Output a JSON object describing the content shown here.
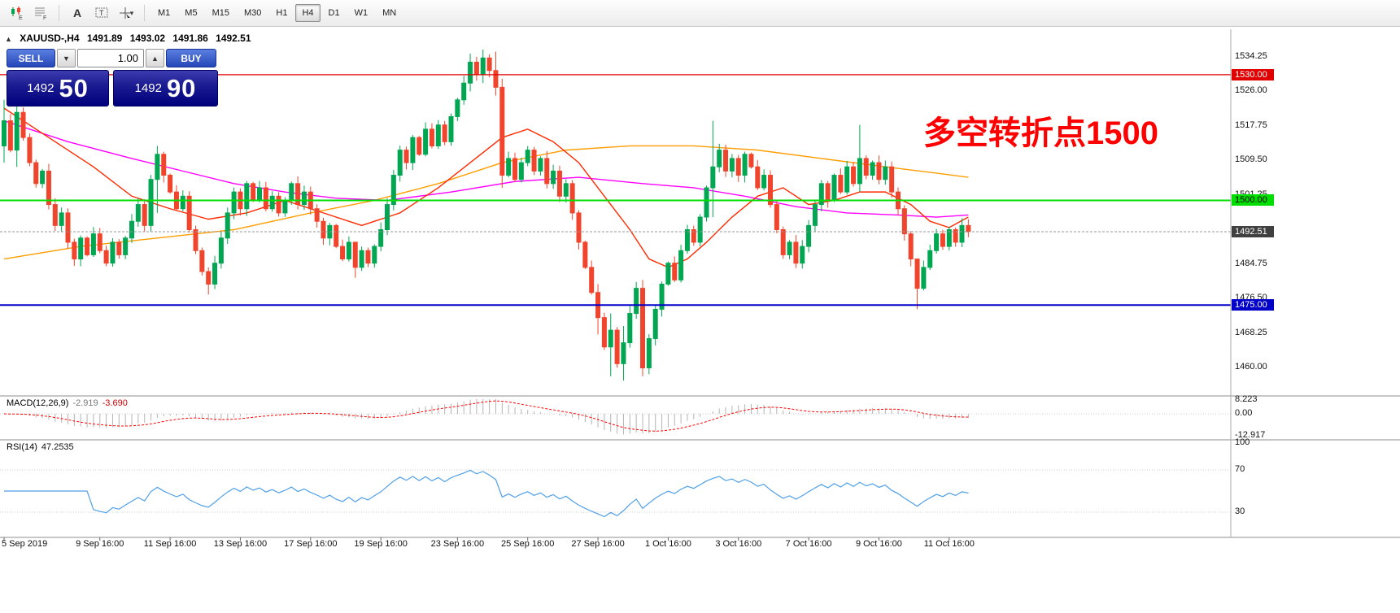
{
  "toolbar": {
    "timeframes": [
      "M1",
      "M5",
      "M15",
      "M30",
      "H1",
      "H4",
      "D1",
      "W1",
      "MN"
    ],
    "active_timeframe": "H4",
    "letter_a": "A",
    "label_t": "T",
    "sub_e": "E",
    "sub_f": "F",
    "cursor_caret": "▾"
  },
  "chart_header": {
    "collapse": "▲",
    "symbol": "XAUUSD-,H4",
    "open": "1491.89",
    "high": "1493.02",
    "low": "1491.86",
    "close": "1492.51"
  },
  "trade_panel": {
    "sell_label": "SELL",
    "buy_label": "BUY",
    "volume": "1.00",
    "dropdown_glyph": "▼",
    "spin_glyph": "▲",
    "sell_small": "1492",
    "sell_big": "50",
    "buy_small": "1492",
    "buy_big": "90"
  },
  "annotation": {
    "text": "多空转折点1500",
    "color": "#ff0000"
  },
  "indicators": {
    "macd": {
      "name": "MACD(12,26,9)",
      "main": "-2.919",
      "signal": "-3.690",
      "scale_values": [
        8.223,
        0,
        -12.917
      ],
      "scale_labels": [
        "8.223",
        "0.00",
        "-12.917"
      ]
    },
    "rsi": {
      "name": "RSI(14)",
      "value": "47.2535",
      "scale_values": [
        100,
        70,
        30
      ],
      "scale_labels": [
        "100",
        "70",
        "30"
      ]
    }
  },
  "colors": {
    "up": "#00a651",
    "down": "#f0442c",
    "ma_fast": "#ff2a00",
    "ma_mid": "#ff00ff",
    "ma_slow": "#ff9d00",
    "macd_hist": "#b4b4b4",
    "macd_signal": "#ff0000",
    "rsi_line": "#4f9fe8",
    "level_red": "#e00000",
    "level_green": "#00dd00",
    "level_blue": "#0000c8",
    "price_badge": "#404040",
    "current_line": "#999999"
  },
  "chart_data": {
    "type": "candlestick",
    "symbol": "XAUUSD",
    "timeframe": "H4",
    "y_ticks": [
      1534.25,
      1526.0,
      1517.75,
      1509.5,
      1501.25,
      1484.75,
      1476.5,
      1468.25,
      1460.0
    ],
    "levels": [
      {
        "price": 1530.0,
        "label": "1530.00",
        "color_key": "level_green_dummy",
        "color": "#e00000",
        "text_color": "#ffffff",
        "width": 1.3
      },
      {
        "price": 1500.0,
        "label": "1500.00",
        "color": "#00dd00",
        "text_color": "#000000",
        "width": 2
      },
      {
        "price": 1475.0,
        "label": "1475.00",
        "color": "#0000c8",
        "text_color": "#ffffff",
        "width": 2
      }
    ],
    "current_price": 1492.51,
    "current_price_label": "1492.51",
    "x_labels": [
      {
        "i": 0,
        "text": "5 Sep 2019"
      },
      {
        "i": 15,
        "text": "9 Sep 16:00"
      },
      {
        "i": 26,
        "text": "11 Sep 16:00"
      },
      {
        "i": 37,
        "text": "13 Sep 16:00"
      },
      {
        "i": 48,
        "text": "17 Sep 16:00"
      },
      {
        "i": 59,
        "text": "19 Sep 16:00"
      },
      {
        "i": 71,
        "text": "23 Sep 16:00"
      },
      {
        "i": 82,
        "text": "25 Sep 16:00"
      },
      {
        "i": 93,
        "text": "27 Sep 16:00"
      },
      {
        "i": 104,
        "text": "1 Oct 16:00"
      },
      {
        "i": 115,
        "text": "3 Oct 16:00"
      },
      {
        "i": 126,
        "text": "7 Oct 16:00"
      },
      {
        "i": 137,
        "text": "9 Oct 16:00"
      },
      {
        "i": 148,
        "text": "11 Oct 16:00"
      }
    ],
    "candles": {
      "open_first": 1513,
      "closes": [
        1519,
        1512,
        1521,
        1515,
        1509,
        1504,
        1507,
        1499,
        1494,
        1497,
        1490,
        1486,
        1491,
        1487,
        1492,
        1488,
        1485,
        1490,
        1487,
        1491,
        1495,
        1499,
        1494,
        1505,
        1511,
        1506,
        1502,
        1498,
        1501,
        1493,
        1488,
        1483,
        1480,
        1485,
        1491,
        1497,
        1502,
        1498,
        1504,
        1500,
        1503,
        1498,
        1501,
        1497,
        1500,
        1504,
        1499,
        1502,
        1498,
        1495,
        1491,
        1494,
        1489,
        1486,
        1490,
        1484,
        1488,
        1485,
        1489,
        1493,
        1499,
        1506,
        1512,
        1509,
        1515,
        1511,
        1517,
        1513,
        1518,
        1514,
        1520,
        1524,
        1528,
        1533,
        1530,
        1534,
        1531,
        1527,
        1506,
        1510,
        1505,
        1509,
        1512,
        1507,
        1510,
        1504,
        1507,
        1501,
        1504,
        1497,
        1490,
        1484,
        1478,
        1472,
        1465,
        1469,
        1461,
        1466,
        1473,
        1479,
        1460,
        1467,
        1474,
        1480,
        1485,
        1481,
        1488,
        1493,
        1490,
        1496,
        1503,
        1508,
        1512,
        1507,
        1510,
        1506,
        1511,
        1508,
        1503,
        1506,
        1499,
        1493,
        1487,
        1490,
        1485,
        1489,
        1494,
        1499,
        1504,
        1500,
        1506,
        1502,
        1508,
        1504,
        1510,
        1506,
        1509,
        1505,
        1508,
        1502,
        1498,
        1492,
        1486,
        1479,
        1484,
        1488,
        1492,
        1489,
        1493,
        1490,
        1494,
        1492.5
      ],
      "wick_overrides": {
        "0": [
          1524,
          1509
        ],
        "2": [
          1526,
          1508
        ],
        "24": [
          1513,
          1497
        ],
        "32": [
          1484,
          1477.5
        ],
        "55": [
          1490,
          1481.5
        ],
        "73": [
          1535,
          1526
        ],
        "75": [
          1536,
          1528
        ],
        "77": [
          1535.5,
          1525
        ],
        "78": [
          1529,
          1503
        ],
        "93": [
          1480,
          1468
        ],
        "95": [
          1473,
          1458
        ],
        "97": [
          1470,
          1457
        ],
        "100": [
          1481,
          1458
        ],
        "111": [
          1519,
          1496
        ],
        "134": [
          1518,
          1502
        ],
        "143": [
          1483,
          1474
        ]
      }
    },
    "overlays": [
      {
        "name": "ma-slow-orange",
        "color": "#ff9d00",
        "points": [
          [
            0,
            1486
          ],
          [
            12,
            1489
          ],
          [
            24,
            1491
          ],
          [
            36,
            1493
          ],
          [
            48,
            1497
          ],
          [
            58,
            1500
          ],
          [
            68,
            1504
          ],
          [
            78,
            1509
          ],
          [
            88,
            1512
          ],
          [
            98,
            1513
          ],
          [
            108,
            1513
          ],
          [
            118,
            1512
          ],
          [
            128,
            1510
          ],
          [
            138,
            1508
          ],
          [
            146,
            1506.5
          ],
          [
            151,
            1505.5
          ]
        ]
      },
      {
        "name": "ma-mid-magenta",
        "color": "#ff00ff",
        "points": [
          [
            0,
            1519
          ],
          [
            10,
            1514
          ],
          [
            20,
            1510
          ],
          [
            28,
            1507
          ],
          [
            36,
            1504
          ],
          [
            44,
            1502
          ],
          [
            52,
            1500.5
          ],
          [
            60,
            1500
          ],
          [
            70,
            1502
          ],
          [
            80,
            1504.5
          ],
          [
            90,
            1505.5
          ],
          [
            100,
            1504
          ],
          [
            108,
            1503
          ],
          [
            116,
            1501
          ],
          [
            124,
            1498.5
          ],
          [
            132,
            1497
          ],
          [
            140,
            1496.5
          ],
          [
            146,
            1496
          ],
          [
            151,
            1496.5
          ]
        ]
      },
      {
        "name": "ma-fast-red",
        "color": "#ff2a00",
        "points": [
          [
            0,
            1522
          ],
          [
            8,
            1514
          ],
          [
            14,
            1508
          ],
          [
            20,
            1501
          ],
          [
            26,
            1498
          ],
          [
            32,
            1495.5
          ],
          [
            38,
            1497
          ],
          [
            44,
            1500
          ],
          [
            50,
            1497
          ],
          [
            56,
            1494
          ],
          [
            62,
            1497
          ],
          [
            68,
            1503
          ],
          [
            73,
            1509
          ],
          [
            78,
            1515
          ],
          [
            82,
            1517
          ],
          [
            86,
            1514
          ],
          [
            90,
            1509
          ],
          [
            94,
            1501
          ],
          [
            98,
            1493
          ],
          [
            101,
            1486
          ],
          [
            104,
            1484
          ],
          [
            107,
            1486
          ],
          [
            110,
            1490
          ],
          [
            114,
            1496
          ],
          [
            118,
            1501
          ],
          [
            122,
            1503
          ],
          [
            126,
            1499
          ],
          [
            130,
            1500
          ],
          [
            134,
            1502
          ],
          [
            138,
            1502
          ],
          [
            142,
            1499
          ],
          [
            145,
            1495
          ],
          [
            148,
            1493.5
          ],
          [
            151,
            1496
          ]
        ]
      }
    ]
  }
}
